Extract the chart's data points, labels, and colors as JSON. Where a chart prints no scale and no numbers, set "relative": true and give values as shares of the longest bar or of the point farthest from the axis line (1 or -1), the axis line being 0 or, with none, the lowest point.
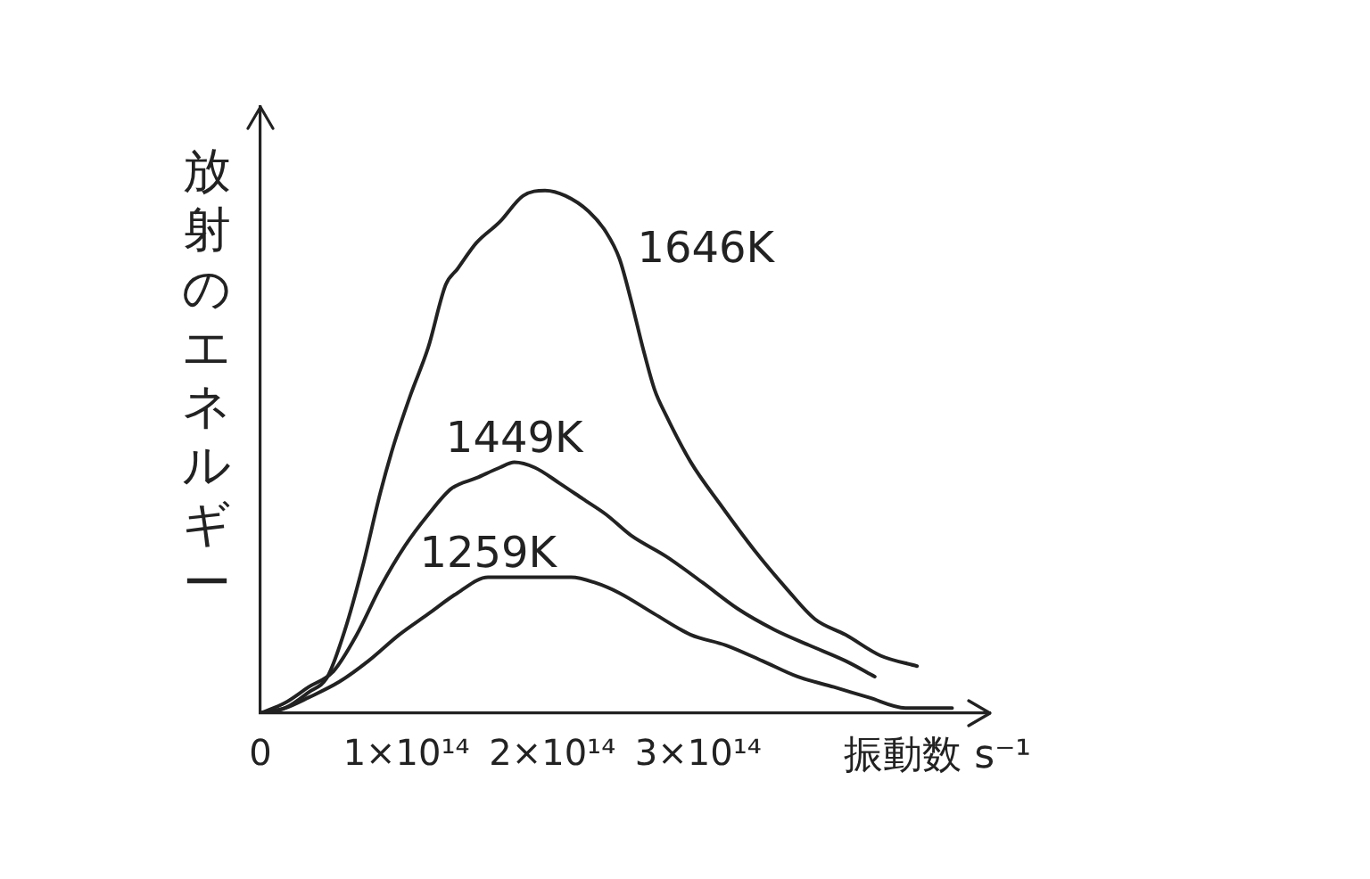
{
  "chart_data": {
    "type": "line",
    "relative": true,
    "xlabel": "振動数 s⁻¹",
    "ylabel": "放射のエネルギー",
    "xlim": [
      0,
      500000000000000.0
    ],
    "xticks": [
      0,
      {
        "value": 100000000000000.0,
        "label": "1×10¹⁴"
      },
      {
        "value": 200000000000000.0,
        "label": "2×10¹⁴"
      },
      {
        "value": 300000000000000.0,
        "label": "3×10¹⁴"
      }
    ],
    "series": [
      {
        "name": "1646K",
        "color": "#222222",
        "x": [
          0,
          17000000000000.0,
          33000000000000.0,
          46000000000000.0,
          58000000000000.0,
          70000000000000.0,
          82000000000000.0,
          91000000000000.0,
          103000000000000.0,
          115000000000000.0,
          127000000000000.0,
          135000000000000.0,
          148000000000000.0,
          164000000000000.0,
          180000000000000.0,
          195000000000000.0,
          209000000000000.0,
          225000000000000.0,
          237000000000000.0,
          246000000000000.0,
          254000000000000.0,
          262000000000000.0,
          270000000000000.0,
          278000000000000.0,
          295000000000000.0,
          315000000000000.0,
          339000000000000.0,
          360000000000000.0,
          380000000000000.0,
          401000000000000.0,
          425000000000000.0,
          450000000000000.0
        ],
        "values": [
          0,
          0.01,
          0.04,
          0.07,
          0.16,
          0.28,
          0.42,
          0.51,
          0.61,
          0.7,
          0.82,
          0.85,
          0.9,
          0.94,
          0.99,
          1,
          0.99,
          0.96,
          0.92,
          0.87,
          0.79,
          0.7,
          0.62,
          0.57,
          0.48,
          0.4,
          0.31,
          0.24,
          0.18,
          0.15,
          0.11,
          0.09
        ]
      },
      {
        "name": "1449K",
        "color": "#222222",
        "x": [
          0,
          17000000000000.0,
          33000000000000.0,
          50000000000000.0,
          66000000000000.0,
          82000000000000.0,
          99000000000000.0,
          115000000000000.0,
          131000000000000.0,
          148000000000000.0,
          164000000000000.0,
          174000000000000.0,
          188000000000000.0,
          205000000000000.0,
          221000000000000.0,
          237000000000000.0,
          254000000000000.0,
          278000000000000.0,
          303000000000000.0,
          327000000000000.0,
          352000000000000.0,
          376000000000000.0,
          401000000000000.0,
          421000000000000.0
        ],
        "values": [
          0,
          0.02,
          0.05,
          0.08,
          0.15,
          0.24,
          0.32,
          0.38,
          0.43,
          0.45,
          0.47,
          0.48,
          0.47,
          0.44,
          0.41,
          0.38,
          0.34,
          0.3,
          0.25,
          0.2,
          0.16,
          0.13,
          0.1,
          0.07
        ]
      },
      {
        "name": "1259K",
        "color": "#222222",
        "x": [
          0,
          17000000000000.0,
          33000000000000.0,
          54000000000000.0,
          74000000000000.0,
          95000000000000.0,
          115000000000000.0,
          135000000000000.0,
          156000000000000.0,
          176000000000000.0,
          197000000000000.0,
          213000000000000.0,
          229000000000000.0,
          246000000000000.0,
          270000000000000.0,
          295000000000000.0,
          319000000000000.0,
          344000000000000.0,
          368000000000000.0,
          393000000000000.0,
          417000000000000.0,
          442000000000000.0,
          474000000000000.0
        ],
        "values": [
          0,
          0.01,
          0.03,
          0.06,
          0.1,
          0.15,
          0.19,
          0.23,
          0.26,
          0.26,
          0.26,
          0.26,
          0.25,
          0.23,
          0.19,
          0.15,
          0.13,
          0.1,
          0.07,
          0.05,
          0.03,
          0.01,
          0.01
        ]
      }
    ]
  }
}
